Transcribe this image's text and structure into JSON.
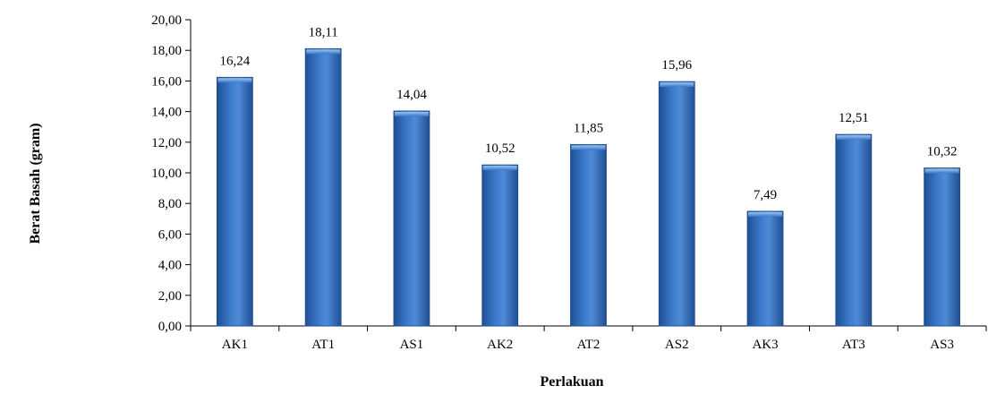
{
  "chart_data": {
    "type": "bar",
    "categories": [
      "AK1",
      "AT1",
      "AS1",
      "AK2",
      "AT2",
      "AS2",
      "AK3",
      "AT3",
      "AS3"
    ],
    "values": [
      16.24,
      18.11,
      14.04,
      10.52,
      11.85,
      15.96,
      7.49,
      12.51,
      10.32
    ],
    "value_labels": [
      "16,24",
      "18,11",
      "14,04",
      "10,52",
      "11,85",
      "15,96",
      "7,49",
      "12,51",
      "10,32"
    ],
    "yticks": [
      0,
      2,
      4,
      6,
      8,
      10,
      12,
      14,
      16,
      18,
      20
    ],
    "ytick_labels": [
      "0,00",
      "2,00",
      "4,00",
      "6,00",
      "8,00",
      "10,00",
      "12,00",
      "14,00",
      "16,00",
      "18,00",
      "20,00"
    ],
    "ylim": [
      0,
      20
    ],
    "xlabel": "Perlakuan",
    "ylabel": "Berat Basah (gram)",
    "title": "",
    "grid": false,
    "legend": "none",
    "bar_color": "#3a78c8",
    "bar_color_dark": "#1f4f93",
    "bar_color_light": "#7fb0ea"
  }
}
